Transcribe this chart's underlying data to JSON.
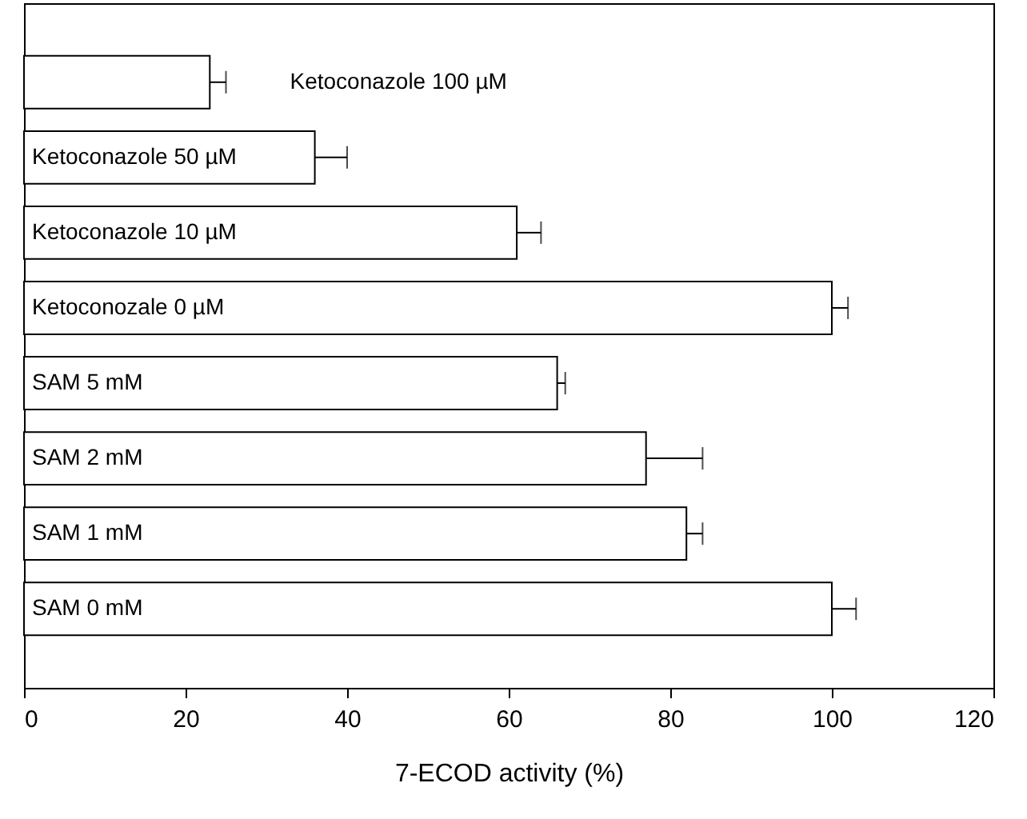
{
  "chart_data": {
    "type": "bar",
    "orientation": "horizontal",
    "xlabel": "7-ECOD activity (%)",
    "categories": [
      "Ketoconazole 100 µM",
      "Ketoconazole 50 µM",
      "Ketoconazole 10 µM",
      "Ketoconozale 0 µM",
      "SAM 5 mM",
      "SAM 2 mM",
      "SAM 1 mM",
      "SAM 0 mM"
    ],
    "values": [
      23,
      36,
      61,
      100,
      66,
      77,
      82,
      100
    ],
    "errors": [
      [
        23,
        25
      ],
      [
        36,
        40
      ],
      [
        61,
        64
      ],
      [
        100,
        102
      ],
      [
        66,
        67
      ],
      [
        77,
        84
      ],
      [
        82,
        84
      ],
      [
        100,
        103
      ]
    ],
    "color": "#ffffff",
    "xlim": [
      0,
      120
    ],
    "xticks": [
      0,
      20,
      40,
      60,
      80,
      100,
      120
    ],
    "grid": false
  }
}
